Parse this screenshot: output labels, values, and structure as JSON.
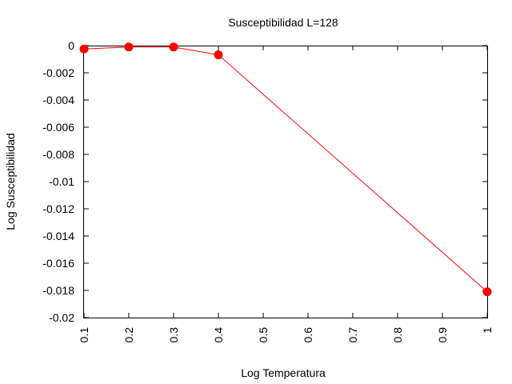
{
  "chart_data": {
    "type": "line",
    "title": "Susceptibilidad L=128",
    "xlabel": "Log Temperatura",
    "ylabel": "Log Susceptibilidad",
    "xlim": [
      0.1,
      1.0
    ],
    "ylim": [
      -0.02,
      0.0
    ],
    "x_ticks": [
      "0.1",
      "0.2",
      "0.3",
      "0.4",
      "0.5",
      "0.6",
      "0.7",
      "0.8",
      "0.9",
      "1"
    ],
    "x_tick_values": [
      0.1,
      0.2,
      0.3,
      0.4,
      0.5,
      0.6,
      0.7,
      0.8,
      0.9,
      1.0
    ],
    "y_ticks": [
      "0",
      "-0.002",
      "-0.004",
      "-0.006",
      "-0.008",
      "-0.01",
      "-0.012",
      "-0.014",
      "-0.016",
      "-0.018",
      "-0.02"
    ],
    "y_tick_values": [
      0,
      -0.002,
      -0.004,
      -0.006,
      -0.008,
      -0.01,
      -0.012,
      -0.014,
      -0.016,
      -0.018,
      -0.02
    ],
    "grid": false,
    "legend": "none",
    "series_color": "#ff0000",
    "series": [
      {
        "x": [
          0.1,
          0.2,
          0.3,
          0.4,
          1.0
        ],
        "y": [
          -0.00025,
          -0.0001,
          -0.0001,
          -0.00068,
          -0.0181
        ]
      }
    ]
  }
}
